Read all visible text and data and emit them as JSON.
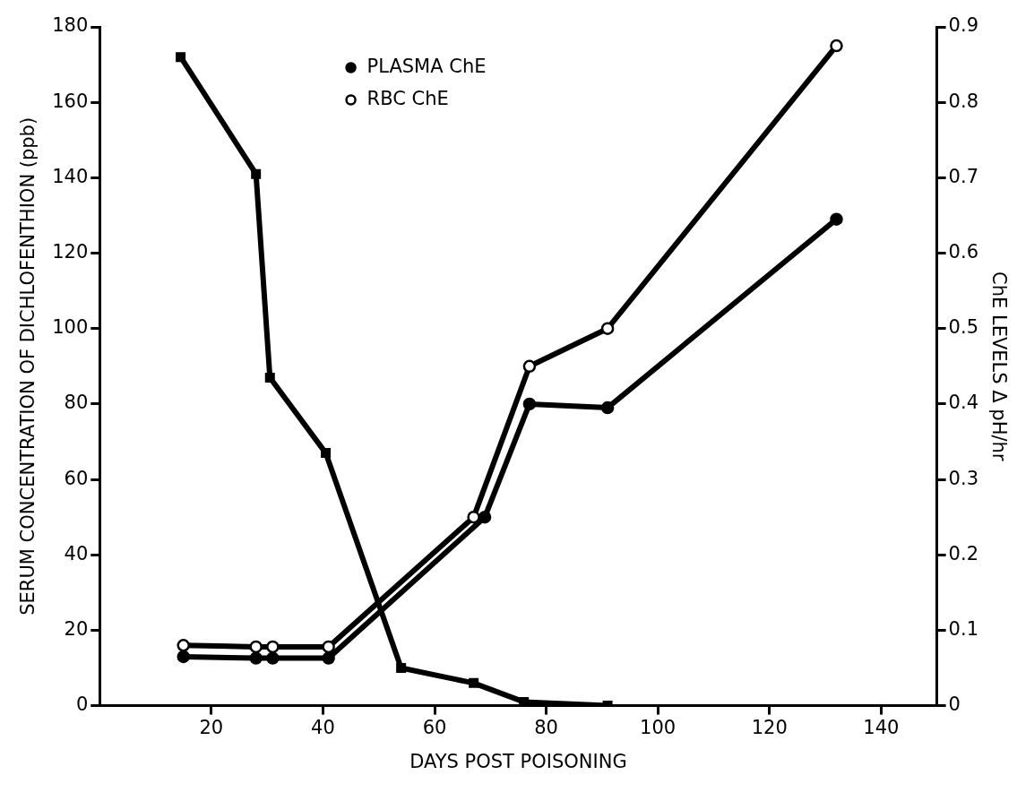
{
  "chart_data": {
    "type": "line",
    "xlabel": "DAYS POST POISONING",
    "ylabel": "SERUM CONCENTRATION OF DICHLOFENTHION (ppb)",
    "y2label": "ChE LEVELS Δ pH/hr",
    "xlim": [
      0,
      150
    ],
    "xticks": [
      20,
      40,
      60,
      80,
      100,
      120,
      140
    ],
    "ylim": [
      0,
      180
    ],
    "yticks": [
      0,
      20,
      40,
      60,
      80,
      100,
      120,
      140,
      160,
      180
    ],
    "y2lim": [
      0,
      0.9
    ],
    "y2ticks": [
      0,
      0.1,
      0.2,
      0.3,
      0.4,
      0.5,
      0.6,
      0.7,
      0.8,
      0.9
    ],
    "grid": false,
    "legend": "top",
    "line_style": "solid",
    "series": [
      {
        "name": "PLASMA ChE",
        "color": "#000000",
        "axis": "y2",
        "marker": "circle",
        "x": [
          15,
          28,
          31,
          41,
          69,
          77,
          91,
          132
        ],
        "values": [
          0.065,
          0.063,
          0.063,
          0.063,
          0.25,
          0.4,
          0.395,
          0.645
        ]
      },
      {
        "name": "RBC ChE",
        "color": "#000000",
        "axis": "y2",
        "marker": "open_circle",
        "x": [
          15,
          28,
          31,
          41,
          67,
          77,
          91,
          132
        ],
        "values": [
          0.08,
          0.078,
          0.078,
          0.078,
          0.25,
          0.45,
          0.5,
          0.875
        ]
      },
      {
        "color": "#000000",
        "marker": "square",
        "x": [
          14.5,
          28,
          30.5,
          40.5,
          54,
          67,
          76,
          91
        ],
        "values": [
          172,
          141,
          87,
          67,
          10,
          6,
          1,
          0
        ]
      }
    ]
  }
}
